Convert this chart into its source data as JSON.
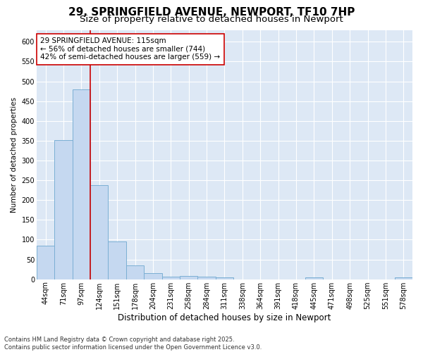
{
  "title_line1": "29, SPRINGFIELD AVENUE, NEWPORT, TF10 7HP",
  "title_line2": "Size of property relative to detached houses in Newport",
  "xlabel": "Distribution of detached houses by size in Newport",
  "ylabel": "Number of detached properties",
  "categories": [
    "44sqm",
    "71sqm",
    "97sqm",
    "124sqm",
    "151sqm",
    "178sqm",
    "204sqm",
    "231sqm",
    "258sqm",
    "284sqm",
    "311sqm",
    "338sqm",
    "364sqm",
    "391sqm",
    "418sqm",
    "445sqm",
    "471sqm",
    "498sqm",
    "525sqm",
    "551sqm",
    "578sqm"
  ],
  "values": [
    85,
    352,
    480,
    237,
    96,
    35,
    16,
    7,
    8,
    7,
    4,
    0,
    0,
    0,
    0,
    5,
    0,
    0,
    0,
    0,
    5
  ],
  "bar_color": "#c5d8f0",
  "bar_edge_color": "#7bafd4",
  "plot_bg_color": "#dde8f5",
  "fig_bg_color": "#ffffff",
  "grid_color": "#ffffff",
  "vline_color": "#cc0000",
  "vline_x_index": 2.5,
  "annotation_text": "29 SPRINGFIELD AVENUE: 115sqm\n← 56% of detached houses are smaller (744)\n42% of semi-detached houses are larger (559) →",
  "annotation_box_facecolor": "#ffffff",
  "annotation_box_edgecolor": "#cc0000",
  "ylim": [
    0,
    630
  ],
  "yticks": [
    0,
    50,
    100,
    150,
    200,
    250,
    300,
    350,
    400,
    450,
    500,
    550,
    600
  ],
  "title1_fontsize": 11,
  "title2_fontsize": 9.5,
  "xlabel_fontsize": 8.5,
  "ylabel_fontsize": 7.5,
  "tick_fontsize": 7,
  "annot_fontsize": 7.5,
  "footer_fontsize": 6,
  "footer_line1": "Contains HM Land Registry data © Crown copyright and database right 2025.",
  "footer_line2": "Contains public sector information licensed under the Open Government Licence v3.0."
}
